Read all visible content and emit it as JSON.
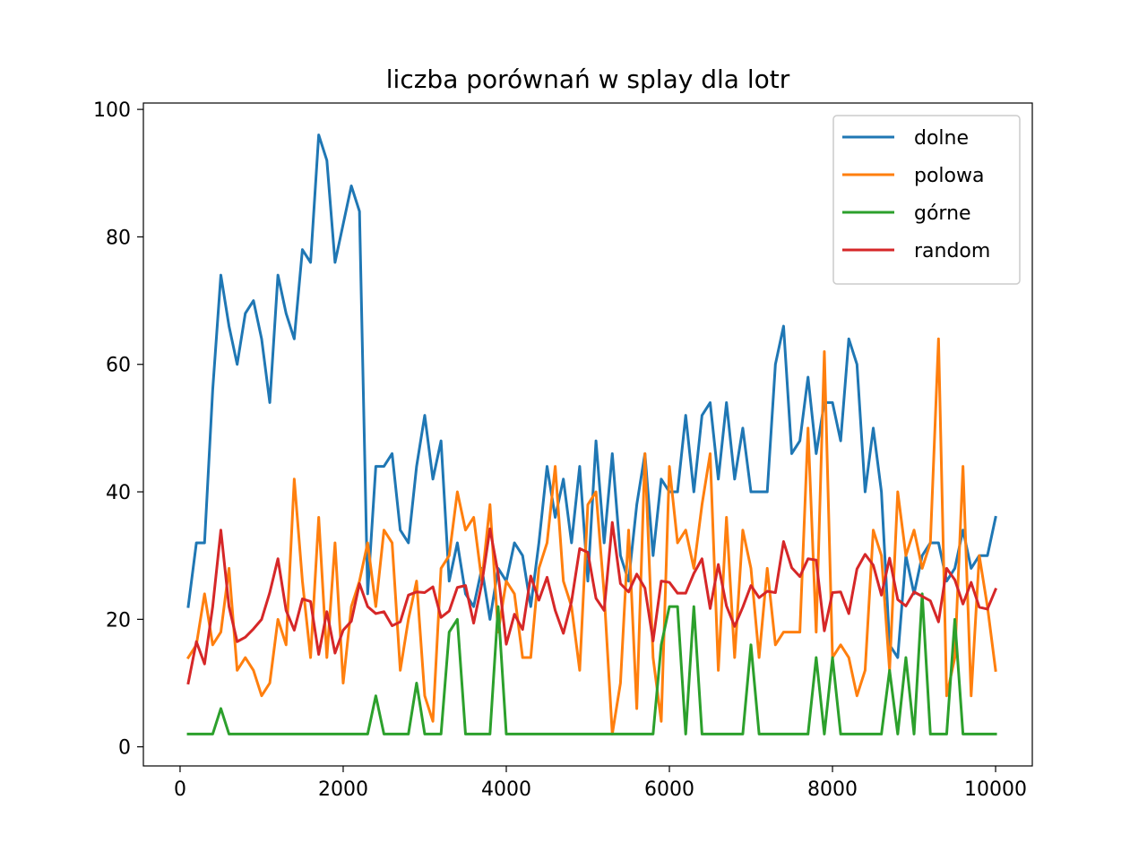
{
  "chart_data": {
    "type": "line",
    "title": "liczba porównań w splay dla lotr",
    "xlabel": "",
    "ylabel": "",
    "xlim": [
      -450,
      10450
    ],
    "ylim": [
      -3,
      101
    ],
    "xticks": [
      0,
      2000,
      4000,
      6000,
      8000,
      10000
    ],
    "yticks": [
      0,
      20,
      40,
      60,
      80,
      100
    ],
    "grid": false,
    "legend_position": "top-right",
    "x": [
      100,
      200,
      300,
      400,
      500,
      600,
      700,
      800,
      900,
      1000,
      1100,
      1200,
      1300,
      1400,
      1500,
      1600,
      1700,
      1800,
      1900,
      2000,
      2100,
      2200,
      2300,
      2400,
      2500,
      2600,
      2700,
      2800,
      2900,
      3000,
      3100,
      3200,
      3300,
      3400,
      3500,
      3600,
      3700,
      3800,
      3900,
      4000,
      4100,
      4200,
      4300,
      4400,
      4500,
      4600,
      4700,
      4800,
      4900,
      5000,
      5100,
      5200,
      5300,
      5400,
      5500,
      5600,
      5700,
      5800,
      5900,
      6000,
      6100,
      6200,
      6300,
      6400,
      6500,
      6600,
      6700,
      6800,
      6900,
      7000,
      7100,
      7200,
      7300,
      7400,
      7500,
      7600,
      7700,
      7800,
      7900,
      8000,
      8100,
      8200,
      8300,
      8400,
      8500,
      8600,
      8700,
      8800,
      8900,
      9000,
      9100,
      9200,
      9300,
      9400,
      9500,
      9600,
      9700,
      9800,
      9900,
      10000
    ],
    "series": [
      {
        "name": "dolne",
        "color": "#1f77b4",
        "values": [
          22,
          32,
          32,
          56,
          74,
          66,
          60,
          68,
          70,
          64,
          54,
          74,
          68,
          64,
          78,
          76,
          96,
          92,
          76,
          82,
          88,
          84,
          24,
          44,
          44,
          46,
          34,
          32,
          44,
          52,
          42,
          48,
          26,
          32,
          24,
          22,
          28,
          20,
          28,
          26,
          32,
          30,
          22,
          32,
          44,
          36,
          42,
          32,
          44,
          26,
          48,
          32,
          46,
          30,
          26,
          38,
          46,
          30,
          42,
          40,
          40,
          52,
          40,
          52,
          54,
          42,
          54,
          42,
          50,
          40,
          40,
          40,
          60,
          66,
          46,
          48,
          58,
          46,
          54,
          54,
          48,
          64,
          60,
          40,
          50,
          40,
          16,
          14,
          30,
          24,
          30,
          32,
          32,
          26,
          28,
          34,
          28,
          30,
          30,
          36
        ]
      },
      {
        "name": "polowa",
        "color": "#ff7f0e",
        "values": [
          14,
          16,
          24,
          16,
          18,
          28,
          12,
          14,
          12,
          8,
          10,
          20,
          16,
          42,
          26,
          14,
          36,
          14,
          32,
          10,
          22,
          26,
          32,
          22,
          34,
          32,
          12,
          20,
          26,
          8,
          4,
          28,
          30,
          40,
          34,
          36,
          26,
          38,
          18,
          26,
          24,
          14,
          14,
          28,
          32,
          44,
          26,
          22,
          12,
          38,
          40,
          24,
          2,
          10,
          34,
          6,
          46,
          14,
          4,
          44,
          32,
          34,
          28,
          38,
          46,
          12,
          36,
          14,
          34,
          28,
          14,
          28,
          16,
          18,
          18,
          18,
          50,
          18,
          62,
          14,
          16,
          14,
          8,
          12,
          34,
          30,
          12,
          40,
          30,
          34,
          28,
          32,
          64,
          8,
          14,
          44,
          8,
          30,
          22,
          12
        ]
      },
      {
        "name": "górne",
        "color": "#2ca02c",
        "values": [
          2,
          2,
          2,
          2,
          6,
          2,
          2,
          2,
          2,
          2,
          2,
          2,
          2,
          2,
          2,
          2,
          2,
          2,
          2,
          2,
          2,
          2,
          2,
          8,
          2,
          2,
          2,
          2,
          10,
          2,
          2,
          2,
          18,
          20,
          2,
          2,
          2,
          2,
          22,
          2,
          2,
          2,
          2,
          2,
          2,
          2,
          2,
          2,
          2,
          2,
          2,
          2,
          2,
          2,
          2,
          2,
          2,
          2,
          16,
          22,
          22,
          2,
          22,
          2,
          2,
          2,
          2,
          2,
          2,
          16,
          2,
          2,
          2,
          2,
          2,
          2,
          2,
          14,
          2,
          14,
          2,
          2,
          2,
          2,
          2,
          2,
          12,
          2,
          14,
          2,
          24,
          2,
          2,
          2,
          20,
          2,
          2,
          2,
          2,
          2
        ]
      },
      {
        "name": "random",
        "color": "#d62728",
        "values": [
          10,
          16.5,
          13,
          22,
          34,
          22,
          16.5,
          17.2,
          18.5,
          20,
          24.2,
          29.5,
          21.4,
          18.3,
          23.2,
          22.8,
          14.5,
          21.2,
          14.7,
          18.3,
          19.7,
          25.6,
          22,
          20.9,
          21.2,
          19,
          19.6,
          23.8,
          24.3,
          24.2,
          25.1,
          20.3,
          21.3,
          25,
          25.3,
          19.4,
          25.6,
          34.2,
          27.2,
          16.1,
          20.8,
          18.4,
          26.8,
          23,
          26.6,
          21.4,
          17.8,
          22.8,
          31.1,
          30.5,
          23.3,
          21.4,
          35.2,
          25.6,
          24.3,
          27.1,
          24.9,
          16.6,
          26,
          25.8,
          24.1,
          24.1,
          27.2,
          29.5,
          21.7,
          28.6,
          22.1,
          18.9,
          21.9,
          25.3,
          23.4,
          24.4,
          24.2,
          32.2,
          28.1,
          26.7,
          29.5,
          29.3,
          18.2,
          24.2,
          24.3,
          20.9,
          27.9,
          30.2,
          28.5,
          23.8,
          29.6,
          23.1,
          22.1,
          24.3,
          23.6,
          22.9,
          19.6,
          28,
          26.2,
          22.4,
          25.8,
          21.9,
          21.6,
          24.7
        ]
      }
    ]
  }
}
